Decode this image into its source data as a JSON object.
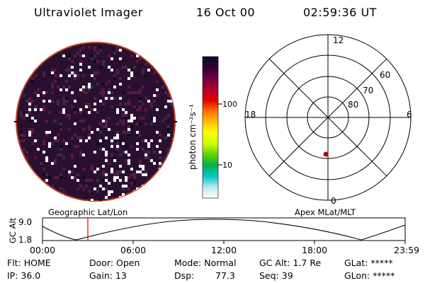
{
  "header": {
    "instrument": "Ultraviolet Imager",
    "date": "16 Oct 00",
    "time": "02:59:36 UT"
  },
  "colorbar": {
    "unit_label": "photon cm⁻²s⁻¹",
    "ticks": [
      "100",
      "10"
    ],
    "stops": [
      "#ffffff",
      "#b8eaea",
      "#00c8c8",
      "#00b050",
      "#66d000",
      "#c8ff00",
      "#ffff00",
      "#ffc000",
      "#ff7000",
      "#e00000",
      "#b00030",
      "#700040",
      "#300030",
      "#0a0a2a"
    ]
  },
  "polar_plot": {
    "mlt_labels": [
      "12",
      "18",
      "6",
      "0"
    ],
    "lat_labels": [
      "60",
      "70",
      "80"
    ],
    "spacecraft_color": "#c00000"
  },
  "altitude_plot": {
    "ylabel": "GC Alt",
    "y_ticks": [
      "9.0",
      "1.8"
    ],
    "left_title": "Geographic Lat/Lon",
    "right_title": "Apex MLat/MLT",
    "x_ticks": [
      "00:00",
      "06:00",
      "12:00",
      "18:00",
      "23:59"
    ],
    "current_time_hours": 2.993
  },
  "status": {
    "flt": "Flt: HOME",
    "ip": "IP: 36.0",
    "door": "Door: Open",
    "gain": "Gain: 13",
    "mode": "Mode: Normal",
    "dsp_label": "Dsp:",
    "dsp_value": "77.3",
    "gc_alt": "GC Alt: 1.7 Re",
    "seq": "Seq: 39",
    "glat": "GLat: *****",
    "glon": "GLon: *****"
  },
  "colors": {
    "image_background": "#2a1030",
    "orbit_line": "#000000",
    "time_marker": "#d00000"
  }
}
